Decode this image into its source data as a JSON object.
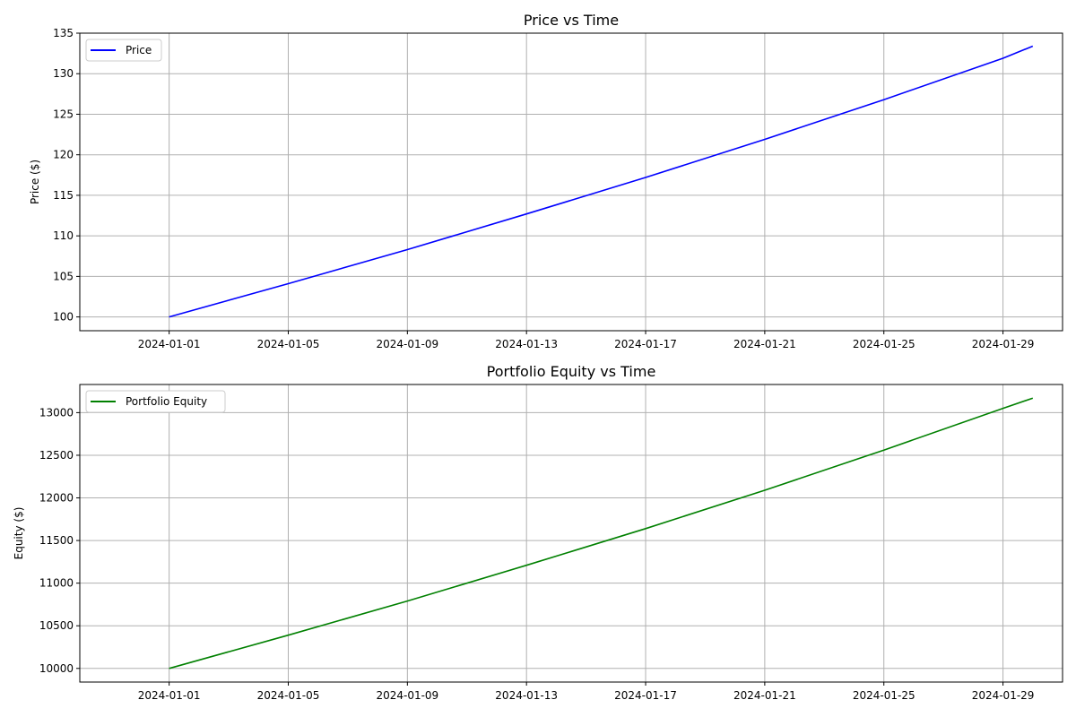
{
  "chart_data": [
    {
      "type": "line",
      "title": "Price vs Time",
      "xlabel": "",
      "ylabel": "Price ($)",
      "x_start": "2024-01-01",
      "x_end": "2024-01-30",
      "xlim": [
        "2023-12-29",
        "2024-01-31"
      ],
      "x_ticks": [
        "2024-01-01",
        "2024-01-05",
        "2024-01-09",
        "2024-01-13",
        "2024-01-17",
        "2024-01-21",
        "2024-01-25",
        "2024-01-29"
      ],
      "ylim": [
        98.3,
        135.0
      ],
      "y_ticks": [
        100,
        105,
        110,
        115,
        120,
        125,
        130,
        135
      ],
      "grid": true,
      "legend_position": "top-left",
      "series": [
        {
          "name": "Price",
          "color": "#0000ff",
          "x": [
            "2024-01-01",
            "2024-01-05",
            "2024-01-09",
            "2024-01-13",
            "2024-01-17",
            "2024-01-21",
            "2024-01-25",
            "2024-01-29",
            "2024-01-30"
          ],
          "values": [
            100.0,
            104.1,
            108.3,
            112.7,
            117.2,
            121.9,
            126.8,
            131.9,
            133.4
          ]
        }
      ]
    },
    {
      "type": "line",
      "title": "Portfolio Equity vs Time",
      "xlabel": "",
      "ylabel": "Equity ($)",
      "x_start": "2024-01-01",
      "x_end": "2024-01-30",
      "xlim": [
        "2023-12-29",
        "2024-01-31"
      ],
      "x_ticks": [
        "2024-01-01",
        "2024-01-05",
        "2024-01-09",
        "2024-01-13",
        "2024-01-17",
        "2024-01-21",
        "2024-01-25",
        "2024-01-29"
      ],
      "ylim": [
        9840,
        13330
      ],
      "y_ticks": [
        10000,
        10500,
        11000,
        11500,
        12000,
        12500,
        13000
      ],
      "grid": true,
      "legend_position": "top-left",
      "series": [
        {
          "name": "Portfolio Equity",
          "color": "#008000",
          "x": [
            "2024-01-01",
            "2024-01-05",
            "2024-01-09",
            "2024-01-13",
            "2024-01-17",
            "2024-01-21",
            "2024-01-25",
            "2024-01-29",
            "2024-01-30"
          ],
          "values": [
            10000,
            10390,
            10790,
            11210,
            11640,
            12090,
            12560,
            13050,
            13170
          ]
        }
      ]
    }
  ]
}
